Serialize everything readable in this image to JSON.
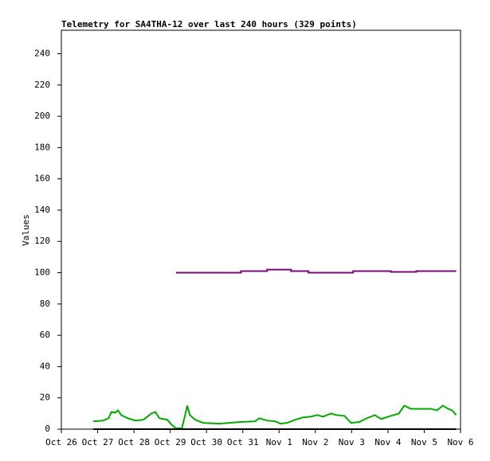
{
  "chart_data": {
    "type": "line",
    "title": "Telemetry for SA4THA-12 over last 240 hours (329 points)",
    "y_label": "Values",
    "xlim": [
      0,
      11
    ],
    "xticks": [
      {
        "value": 0,
        "label": "Oct 26"
      },
      {
        "value": 1,
        "label": "Oct 27"
      },
      {
        "value": 2,
        "label": "Oct 28"
      },
      {
        "value": 3,
        "label": "Oct 29"
      },
      {
        "value": 4,
        "label": "Oct 30"
      },
      {
        "value": 5,
        "label": "Oct 31"
      },
      {
        "value": 6,
        "label": "Nov 1"
      },
      {
        "value": 7,
        "label": "Nov 2"
      },
      {
        "value": 8,
        "label": "Nov 3"
      },
      {
        "value": 9,
        "label": "Nov 4"
      },
      {
        "value": 10,
        "label": "Nov 5"
      },
      {
        "value": 11,
        "label": "Nov 6"
      }
    ],
    "ylim": [
      0,
      255
    ],
    "yticks": [
      0,
      20,
      40,
      60,
      80,
      100,
      120,
      140,
      160,
      180,
      200,
      220,
      240
    ],
    "series": [
      {
        "color": "#780a78",
        "x": [
          3.16,
          4.95,
          4.95,
          5.67,
          5.67,
          6.33,
          6.33,
          6.81,
          6.81,
          8.04,
          8.04,
          9.08,
          9.08,
          9.78,
          9.78,
          10.88
        ],
        "values": [
          100,
          100,
          101,
          101,
          102,
          102,
          101,
          101,
          100,
          100,
          101,
          101,
          100.5,
          100.5,
          101,
          101
        ]
      },
      {
        "color": "#00aa00",
        "x": [
          0.88,
          1.16,
          1.3,
          1.38,
          1.49,
          1.56,
          1.65,
          1.82,
          2.04,
          2.26,
          2.37,
          2.48,
          2.59,
          2.7,
          2.81,
          2.92,
          3.03,
          3.16,
          3.32,
          3.41,
          3.47,
          3.54,
          3.69,
          3.91,
          4.35,
          4.9,
          5.34,
          5.45,
          5.67,
          5.89,
          6.04,
          6.22,
          6.44,
          6.66,
          6.88,
          7.05,
          7.21,
          7.43,
          7.58,
          7.8,
          7.98,
          8.2,
          8.42,
          8.64,
          8.81,
          9.08,
          9.3,
          9.45,
          9.63,
          10.18,
          10.35,
          10.51,
          10.66,
          10.77,
          10.88
        ],
        "values": [
          5,
          5.5,
          7,
          11,
          10.5,
          12,
          9,
          7,
          5.5,
          6,
          8,
          10,
          11,
          7,
          6.5,
          6,
          3,
          0.5,
          0.5,
          9,
          15,
          9,
          6,
          4,
          3.5,
          4.5,
          5,
          7,
          5.5,
          5,
          3.5,
          4,
          6,
          7.5,
          8,
          9,
          8,
          10,
          9,
          8.5,
          4,
          4.5,
          7,
          9,
          6.5,
          8.5,
          10,
          15,
          13,
          13,
          12,
          15,
          13,
          12,
          9
        ]
      },
      {
        "color": "#000000",
        "x": [
          0.88,
          10.88
        ],
        "values": [
          0,
          0
        ]
      }
    ]
  }
}
